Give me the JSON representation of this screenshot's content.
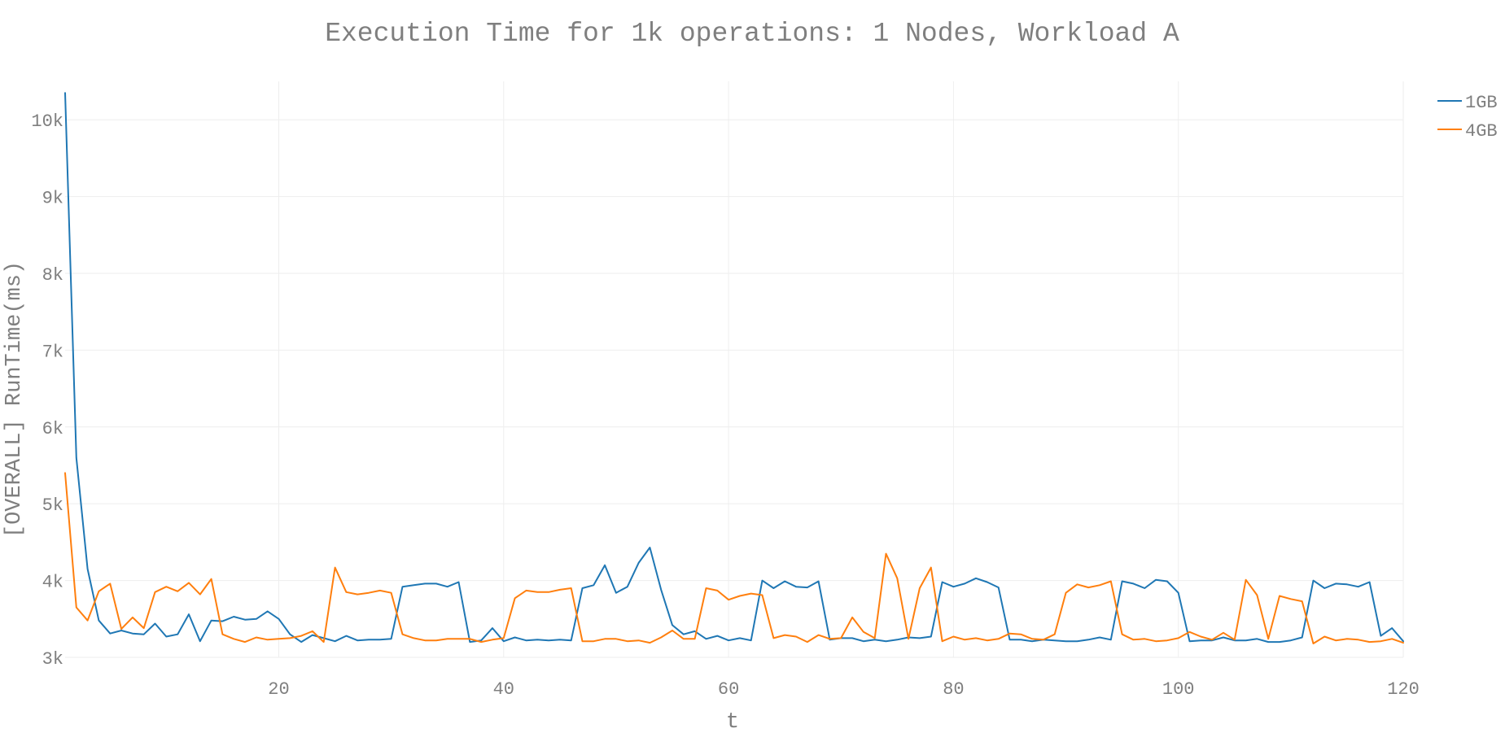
{
  "chart_data": {
    "type": "line",
    "title": "Execution Time for 1k operations: 1 Nodes, Workload A",
    "xlabel": "t",
    "ylabel": "[OVERALL] RunTime(ms)",
    "xlim": [
      1,
      120
    ],
    "ylim": [
      3000,
      10500
    ],
    "x_ticks": [
      20,
      40,
      60,
      80,
      100,
      120
    ],
    "x_tick_labels": [
      "20",
      "40",
      "60",
      "80",
      "100",
      "120"
    ],
    "y_ticks": [
      3000,
      4000,
      5000,
      6000,
      7000,
      8000,
      9000,
      10000
    ],
    "y_tick_labels": [
      "3k",
      "4k",
      "5k",
      "6k",
      "7k",
      "8k",
      "9k",
      "10k"
    ],
    "grid": true,
    "legend_position": "top-right",
    "series": [
      {
        "name": "1GB",
        "color": "#1f77b4",
        "values": [
          10350,
          5600,
          4150,
          3480,
          3310,
          3350,
          3310,
          3300,
          3440,
          3270,
          3300,
          3560,
          3210,
          3480,
          3470,
          3530,
          3490,
          3500,
          3600,
          3500,
          3300,
          3200,
          3290,
          3250,
          3210,
          3280,
          3220,
          3230,
          3230,
          3240,
          3920,
          3940,
          3960,
          3960,
          3920,
          3980,
          3200,
          3220,
          3380,
          3210,
          3260,
          3220,
          3230,
          3220,
          3230,
          3220,
          3900,
          3940,
          4200,
          3840,
          3920,
          4230,
          4430,
          3880,
          3420,
          3300,
          3340,
          3240,
          3280,
          3220,
          3250,
          3220,
          4000,
          3900,
          3990,
          3920,
          3910,
          3990,
          3230,
          3250,
          3250,
          3210,
          3230,
          3210,
          3230,
          3260,
          3250,
          3270,
          3980,
          3920,
          3960,
          4030,
          3980,
          3910,
          3230,
          3230,
          3210,
          3230,
          3220,
          3210,
          3210,
          3230,
          3260,
          3230,
          3990,
          3960,
          3900,
          4010,
          3990,
          3840,
          3210,
          3220,
          3220,
          3260,
          3220,
          3220,
          3240,
          3200,
          3200,
          3220,
          3260,
          4000,
          3900,
          3960,
          3950,
          3920,
          3980,
          3280,
          3380,
          3210
        ]
      },
      {
        "name": "4GB",
        "color": "#ff7f0e",
        "values": [
          5400,
          3650,
          3480,
          3860,
          3960,
          3370,
          3520,
          3380,
          3850,
          3920,
          3860,
          3970,
          3820,
          4020,
          3300,
          3240,
          3200,
          3260,
          3230,
          3240,
          3250,
          3280,
          3340,
          3200,
          4170,
          3850,
          3820,
          3840,
          3870,
          3840,
          3300,
          3250,
          3220,
          3220,
          3240,
          3240,
          3240,
          3200,
          3230,
          3250,
          3770,
          3870,
          3850,
          3850,
          3880,
          3900,
          3210,
          3210,
          3240,
          3240,
          3210,
          3220,
          3190,
          3260,
          3350,
          3240,
          3240,
          3900,
          3870,
          3750,
          3800,
          3830,
          3810,
          3250,
          3290,
          3270,
          3200,
          3290,
          3240,
          3250,
          3520,
          3330,
          3250,
          4350,
          4030,
          3240,
          3900,
          4170,
          3210,
          3270,
          3230,
          3250,
          3220,
          3240,
          3310,
          3300,
          3240,
          3230,
          3300,
          3840,
          3950,
          3910,
          3940,
          3990,
          3300,
          3230,
          3240,
          3210,
          3220,
          3250,
          3330,
          3270,
          3230,
          3320,
          3230,
          4010,
          3810,
          3240,
          3800,
          3760,
          3730,
          3180,
          3270,
          3220,
          3240,
          3230,
          3200,
          3210,
          3240,
          3190
        ]
      }
    ]
  }
}
